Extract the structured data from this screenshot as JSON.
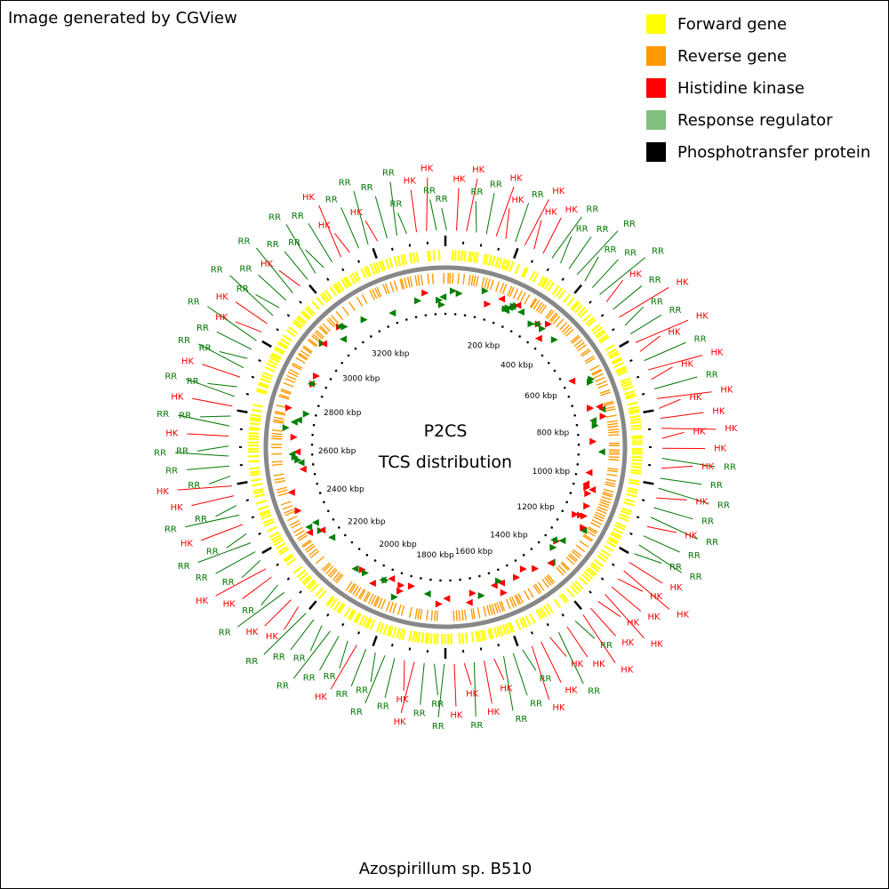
{
  "credit": "Image generated by CGView",
  "organism": "Azospirillum sp. B510",
  "map_title": "P2CS",
  "map_subtitle": "TCS distribution",
  "legend": [
    {
      "label": "Forward gene",
      "color": "#ffff00"
    },
    {
      "label": "Reverse gene",
      "color": "#ff9900"
    },
    {
      "label": "Histidine kinase",
      "color": "#ff0000"
    },
    {
      "label": "Response regulator",
      "color": "#80c080"
    },
    {
      "label": "Phosphotransfer protein",
      "color": "#000000"
    }
  ],
  "ruler_labels": [
    "200 kbp",
    "400 kbp",
    "600 kbp",
    "800 kbp",
    "1000 kbp",
    "1200 kbp",
    "1400 kbp",
    "1600 kbp",
    "1800 kbp",
    "2000 kbp",
    "2200 kbp",
    "2400 kbp",
    "2600 kbp",
    "2800 kbp",
    "3000 kbp",
    "3200 kbp"
  ],
  "colors": {
    "hk_label": "#ff0000",
    "rr_label": "#007700",
    "hk_arrow": "#ff0000",
    "rr_arrow": "#008000",
    "backbone": "#888888"
  },
  "feature_labels": [
    {
      "text": "RR",
      "type": "RR"
    },
    {
      "text": "HK",
      "type": "HK"
    },
    {
      "text": "HK",
      "type": "HK"
    },
    {
      "text": "RR",
      "type": "RR"
    },
    {
      "text": "RR",
      "type": "RR"
    },
    {
      "text": "HK",
      "type": "HK"
    },
    {
      "text": "HK",
      "type": "HK"
    },
    {
      "text": "RR",
      "type": "RR"
    },
    {
      "text": "HK",
      "type": "HK"
    },
    {
      "text": "HK",
      "type": "HK"
    },
    {
      "text": "HK",
      "type": "HK"
    },
    {
      "text": "RR",
      "type": "RR"
    },
    {
      "text": "RR",
      "type": "RR"
    },
    {
      "text": "RR",
      "type": "RR"
    },
    {
      "text": "RR",
      "type": "RR"
    },
    {
      "text": "RR",
      "type": "RR"
    },
    {
      "text": "RR",
      "type": "RR"
    },
    {
      "text": "RR",
      "type": "RR"
    },
    {
      "text": "HK",
      "type": "HK"
    },
    {
      "text": "RR",
      "type": "RR"
    },
    {
      "text": "HK",
      "type": "HK"
    },
    {
      "text": "RR",
      "type": "RR"
    },
    {
      "text": "RR",
      "type": "RR"
    },
    {
      "text": "HK",
      "type": "HK"
    },
    {
      "text": "HK",
      "type": "HK"
    },
    {
      "text": "RR",
      "type": "RR"
    },
    {
      "text": "HK",
      "type": "HK"
    },
    {
      "text": "HK",
      "type": "HK"
    },
    {
      "text": "RR",
      "type": "RR"
    },
    {
      "text": "HK",
      "type": "HK"
    },
    {
      "text": "HK",
      "type": "HK"
    },
    {
      "text": "HK",
      "type": "HK"
    },
    {
      "text": "HK",
      "type": "HK"
    },
    {
      "text": "HK",
      "type": "HK"
    },
    {
      "text": "HK",
      "type": "HK"
    },
    {
      "text": "RR",
      "type": "RR"
    },
    {
      "text": "HK",
      "type": "HK"
    },
    {
      "text": "RR",
      "type": "RR"
    },
    {
      "text": "RR",
      "type": "RR"
    },
    {
      "text": "HK",
      "type": "HK"
    },
    {
      "text": "RR",
      "type": "RR"
    },
    {
      "text": "RR",
      "type": "RR"
    },
    {
      "text": "HK",
      "type": "HK"
    },
    {
      "text": "RR",
      "type": "RR"
    },
    {
      "text": "RR",
      "type": "RR"
    },
    {
      "text": "RR",
      "type": "RR"
    },
    {
      "text": "HK",
      "type": "HK"
    },
    {
      "text": "HK",
      "type": "HK"
    },
    {
      "text": "HK",
      "type": "HK"
    },
    {
      "text": "HK",
      "type": "HK"
    },
    {
      "text": "HK",
      "type": "HK"
    },
    {
      "text": "HK",
      "type": "HK"
    },
    {
      "text": "HK",
      "type": "HK"
    },
    {
      "text": "HK",
      "type": "HK"
    },
    {
      "text": "RR",
      "type": "RR"
    },
    {
      "text": "HK",
      "type": "HK"
    },
    {
      "text": "RR",
      "type": "RR"
    },
    {
      "text": "HK",
      "type": "HK"
    },
    {
      "text": "HK",
      "type": "HK"
    },
    {
      "text": "HK",
      "type": "HK"
    },
    {
      "text": "RR",
      "type": "RR"
    },
    {
      "text": "RR",
      "type": "RR"
    },
    {
      "text": "RR",
      "type": "RR"
    },
    {
      "text": "HK",
      "type": "HK"
    },
    {
      "text": "HK",
      "type": "HK"
    },
    {
      "text": "RR",
      "type": "RR"
    },
    {
      "text": "HK",
      "type": "HK"
    },
    {
      "text": "HK",
      "type": "HK"
    },
    {
      "text": "RR",
      "type": "RR"
    },
    {
      "text": "RR",
      "type": "RR"
    },
    {
      "text": "RR",
      "type": "RR"
    },
    {
      "text": "HK",
      "type": "HK"
    },
    {
      "text": "HK",
      "type": "HK"
    },
    {
      "text": "RR",
      "type": "RR"
    },
    {
      "text": "RR",
      "type": "RR"
    },
    {
      "text": "RR",
      "type": "RR"
    },
    {
      "text": "RR",
      "type": "RR"
    },
    {
      "text": "HK",
      "type": "HK"
    },
    {
      "text": "RR",
      "type": "RR"
    },
    {
      "text": "RR",
      "type": "RR"
    },
    {
      "text": "RR",
      "type": "RR"
    },
    {
      "text": "RR",
      "type": "RR"
    },
    {
      "text": "RR",
      "type": "RR"
    },
    {
      "text": "RR",
      "type": "RR"
    },
    {
      "text": "HK",
      "type": "HK"
    },
    {
      "text": "HK",
      "type": "HK"
    },
    {
      "text": "RR",
      "type": "RR"
    },
    {
      "text": "RR",
      "type": "RR"
    },
    {
      "text": "HK",
      "type": "HK"
    },
    {
      "text": "HK",
      "type": "HK"
    },
    {
      "text": "RR",
      "type": "RR"
    },
    {
      "text": "RR",
      "type": "RR"
    },
    {
      "text": "RR",
      "type": "RR"
    },
    {
      "text": "RR",
      "type": "RR"
    },
    {
      "text": "HK",
      "type": "HK"
    },
    {
      "text": "RR",
      "type": "RR"
    },
    {
      "text": "RR",
      "type": "RR"
    },
    {
      "text": "HK",
      "type": "HK"
    },
    {
      "text": "HK",
      "type": "HK"
    },
    {
      "text": "RR",
      "type": "RR"
    },
    {
      "text": "RR",
      "type": "RR"
    },
    {
      "text": "RR",
      "type": "RR"
    },
    {
      "text": "RR",
      "type": "RR"
    },
    {
      "text": "HK",
      "type": "HK"
    },
    {
      "text": "RR",
      "type": "RR"
    },
    {
      "text": "RR",
      "type": "RR"
    },
    {
      "text": "HK",
      "type": "HK"
    },
    {
      "text": "RR",
      "type": "RR"
    },
    {
      "text": "RR",
      "type": "RR"
    },
    {
      "text": "HK",
      "type": "HK"
    },
    {
      "text": "RR",
      "type": "RR"
    },
    {
      "text": "RR",
      "type": "RR"
    },
    {
      "text": "RR",
      "type": "RR"
    },
    {
      "text": "RR",
      "type": "RR"
    },
    {
      "text": "HK",
      "type": "HK"
    },
    {
      "text": "HK",
      "type": "HK"
    },
    {
      "text": "RR",
      "type": "RR"
    },
    {
      "text": "RR",
      "type": "RR"
    },
    {
      "text": "RR",
      "type": "RR"
    },
    {
      "text": "RR",
      "type": "RR"
    },
    {
      "text": "HK",
      "type": "HK"
    },
    {
      "text": "RR",
      "type": "RR"
    },
    {
      "text": "RR",
      "type": "RR"
    },
    {
      "text": "RR",
      "type": "RR"
    },
    {
      "text": "RR",
      "type": "RR"
    },
    {
      "text": "HK",
      "type": "HK"
    },
    {
      "text": "HK",
      "type": "HK"
    },
    {
      "text": "RR",
      "type": "RR"
    },
    {
      "text": "RR",
      "type": "RR"
    },
    {
      "text": "HK",
      "type": "HK"
    },
    {
      "text": "RR",
      "type": "RR"
    },
    {
      "text": "RR",
      "type": "RR"
    },
    {
      "text": "RR",
      "type": "RR"
    },
    {
      "text": "HK",
      "type": "HK"
    },
    {
      "text": "HK",
      "type": "HK"
    },
    {
      "text": "RR",
      "type": "RR"
    }
  ]
}
